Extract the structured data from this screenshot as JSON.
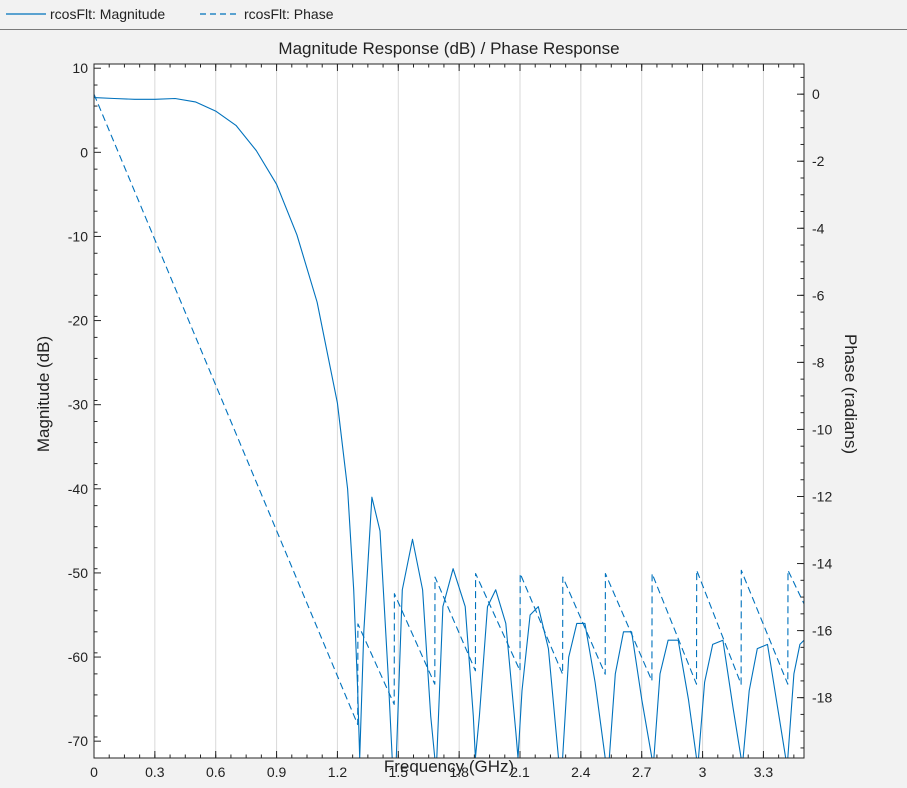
{
  "legend": {
    "magnitude_label": "rcosFlt: Magnitude",
    "phase_label": "rcosFlt: Phase"
  },
  "colors": {
    "series": "#0072bd",
    "background": "#f2f2f2",
    "axes_face": "#ffffff",
    "grid": "#d9d9d9",
    "axis": "#262626"
  },
  "chart_data": {
    "type": "line",
    "title": "Magnitude Response (dB) / Phase Response",
    "xlabel": "Frequency (GHz)",
    "ylabel_left": "Magnitude (dB)",
    "ylabel_right": "Phase (radians)",
    "xlim": [
      0,
      3.5
    ],
    "ylim_left": [
      -72,
      10.5
    ],
    "ylim_right": [
      -19.8,
      0.9
    ],
    "x_ticks": [
      "0",
      "0.3",
      "0.6",
      "0.9",
      "1.2",
      "1.5",
      "1.8",
      "2.1",
      "2.4",
      "2.7",
      "3",
      "3.3"
    ],
    "y_left_ticks": [
      "10",
      "0",
      "-10",
      "-20",
      "-30",
      "-40",
      "-50",
      "-60",
      "-70"
    ],
    "y_right_ticks": [
      "0",
      "-2",
      "-4",
      "-6",
      "-8",
      "-10",
      "-12",
      "-14",
      "-16",
      "-18"
    ],
    "grid": "vertical",
    "legend_position": "top",
    "series": [
      {
        "name": "rcosFlt: Magnitude",
        "axis": "left",
        "style": "solid",
        "x": [
          0,
          0.1,
          0.2,
          0.3,
          0.4,
          0.5,
          0.6,
          0.7,
          0.8,
          0.9,
          1.0,
          1.1,
          1.2,
          1.25,
          1.28,
          1.3,
          1.31,
          1.33,
          1.37,
          1.41,
          1.45,
          1.47,
          1.48,
          1.49,
          1.52,
          1.57,
          1.62,
          1.66,
          1.68,
          1.69,
          1.72,
          1.77,
          1.83,
          1.87,
          1.88,
          1.9,
          1.94,
          1.98,
          2.03,
          2.08,
          2.09,
          2.11,
          2.15,
          2.19,
          2.24,
          2.29,
          2.31,
          2.34,
          2.38,
          2.42,
          2.47,
          2.52,
          2.54,
          2.57,
          2.61,
          2.65,
          2.7,
          2.75,
          2.76,
          2.79,
          2.83,
          2.88,
          2.93,
          2.97,
          2.98,
          3.01,
          3.05,
          3.1,
          3.15,
          3.19,
          3.2,
          3.23,
          3.27,
          3.32,
          3.37,
          3.41,
          3.42,
          3.45,
          3.48,
          3.5
        ],
        "y": [
          6.5,
          6.4,
          6.3,
          6.3,
          6.4,
          6.0,
          4.9,
          3.2,
          0.2,
          -3.8,
          -9.8,
          -17.8,
          -29.8,
          -40,
          -52,
          -64,
          -72,
          -57,
          -41,
          -45,
          -62,
          -72,
          -72,
          -72,
          -52,
          -46,
          -52,
          -67,
          -72,
          -72,
          -54,
          -49.5,
          -54,
          -67,
          -72,
          -67,
          -54,
          -52,
          -56,
          -69,
          -72,
          -64,
          -55,
          -54,
          -59,
          -72,
          -72,
          -60,
          -56,
          -56,
          -63,
          -72,
          -72,
          -62,
          -57,
          -57,
          -65,
          -72,
          -72,
          -62,
          -58,
          -58,
          -65,
          -72,
          -72,
          -63,
          -58.5,
          -58,
          -66,
          -72,
          -72,
          -64,
          -59,
          -58.5,
          -66,
          -72,
          -72,
          -62,
          -58.5,
          -58
        ]
      },
      {
        "name": "rcosFlt: Phase",
        "axis": "right",
        "style": "dashed",
        "x": [
          0,
          1.3,
          1.301,
          1.48,
          1.481,
          1.68,
          1.681,
          1.88,
          1.881,
          2.1,
          2.101,
          2.31,
          2.311,
          2.52,
          2.521,
          2.75,
          2.751,
          2.97,
          2.971,
          3.19,
          3.191,
          3.42,
          3.421,
          3.5
        ],
        "y": [
          0,
          -18.8,
          -15.8,
          -18.2,
          -14.9,
          -17.6,
          -14.4,
          -17.2,
          -14.3,
          -17.2,
          -14.3,
          -17.3,
          -14.4,
          -17.3,
          -14.3,
          -17.5,
          -14.3,
          -17.6,
          -14.2,
          -17.6,
          -14.2,
          -17.6,
          -14.2,
          -15.2
        ]
      }
    ]
  }
}
